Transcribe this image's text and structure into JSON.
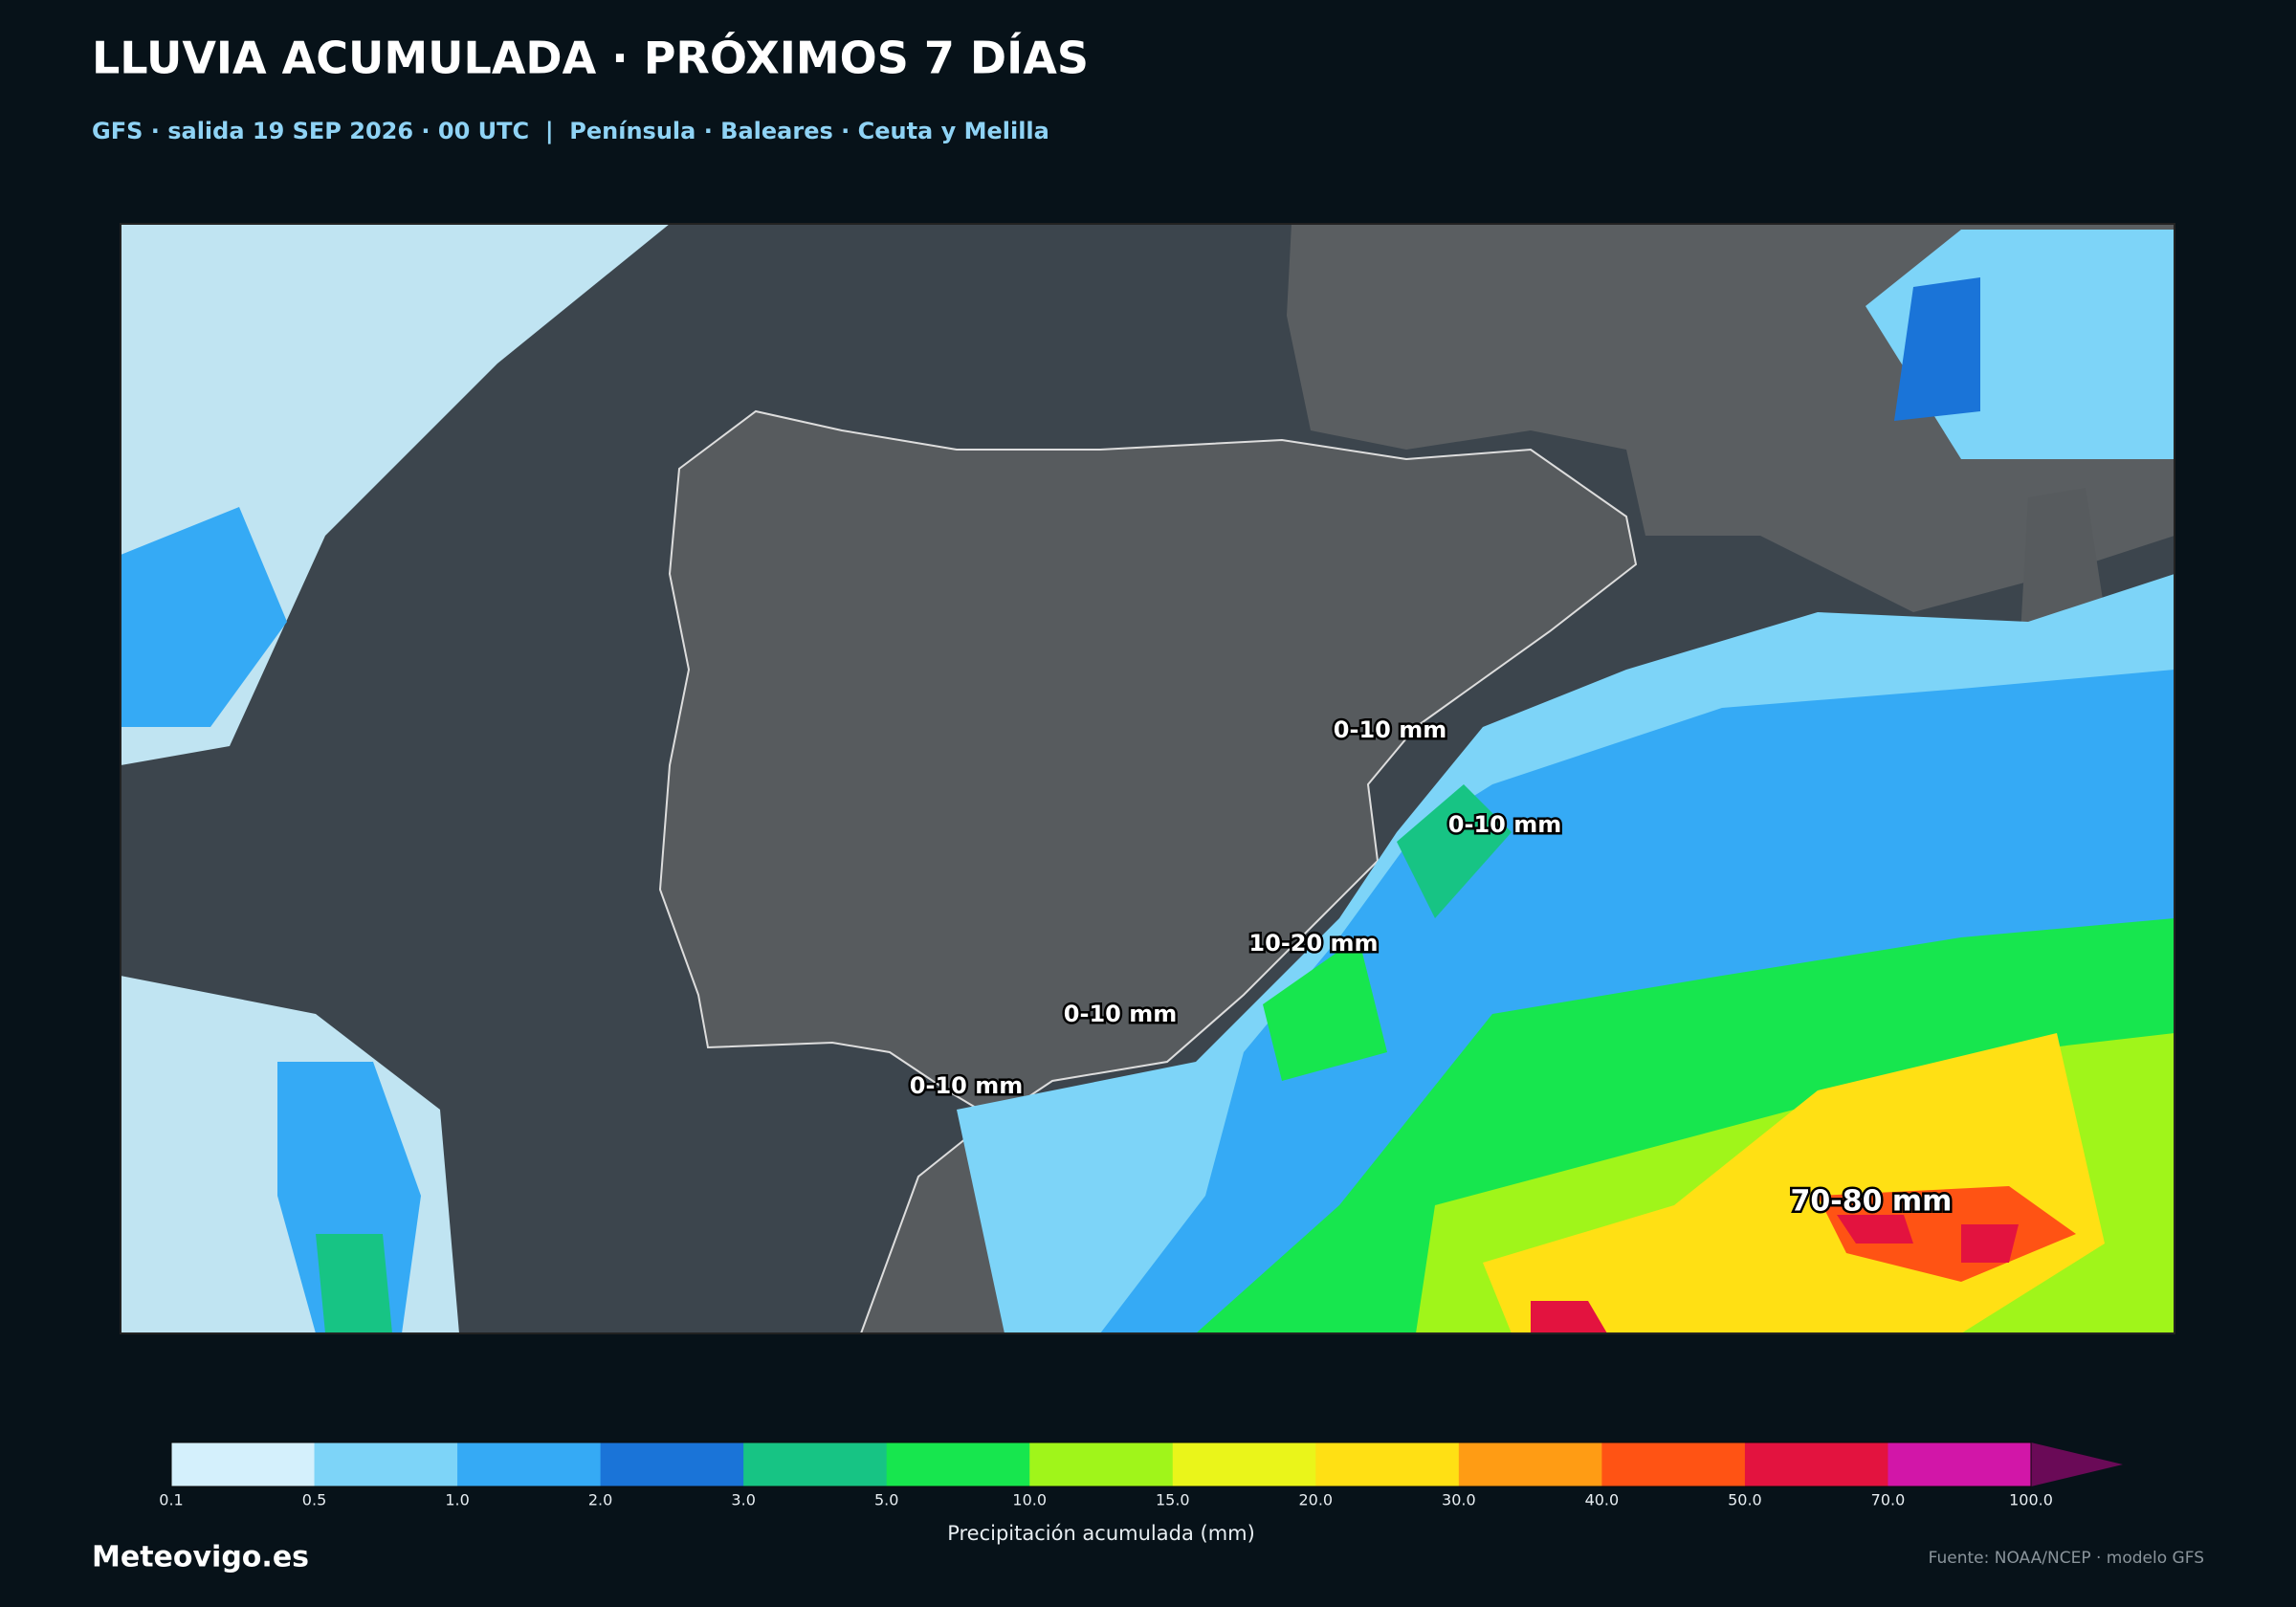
{
  "header": {
    "title": "LLUVIA ACUMULADA · PRÓXIMOS 7 DÍAS",
    "subtitle": "GFS · salida 19 SEP 2026 · 00 UTC  |  Península · Baleares · Ceuta y Melilla"
  },
  "map": {
    "labels": [
      "0-10 mm",
      "0-10 mm",
      "10-20 mm",
      "0-10 mm",
      "0-10 mm",
      "70-80 mm"
    ]
  },
  "colorbar": {
    "label": "Precipitación acumulada (mm)",
    "ticks": [
      "0.1",
      "0.5",
      "1.0",
      "2.0",
      "3.0",
      "5.0",
      "10.0",
      "15.0",
      "20.0",
      "30.0",
      "40.0",
      "50.0",
      "70.0",
      "100.0"
    ],
    "colors": [
      "#d4f0fc",
      "#7dd4f8",
      "#35aaf5",
      "#1a74d8",
      "#17c484",
      "#17e64e",
      "#a0f51a",
      "#eaf51a",
      "#ffe014",
      "#ff9c14",
      "#ff5314",
      "#e3133f",
      "#d216a8"
    ],
    "extend_color": "#6a0a57"
  },
  "footer": {
    "brand": "Meteovigo.es",
    "source": "Fuente: NOAA/NCEP · modelo GFS"
  }
}
